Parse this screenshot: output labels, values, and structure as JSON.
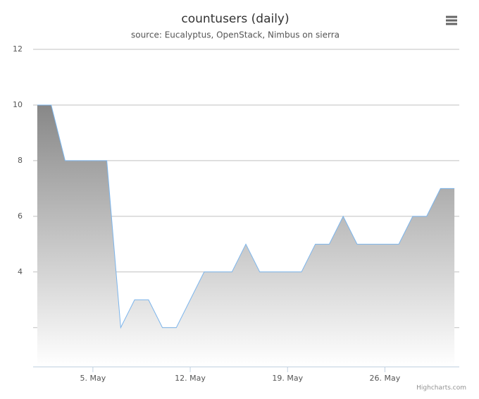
{
  "chart_data": {
    "type": "area",
    "title": "countusers (daily)",
    "subtitle": "source: Eucalyptus, OpenStack, Nimbus on sierra",
    "x": [
      1,
      2,
      3,
      4,
      5,
      6,
      7,
      8,
      9,
      10,
      11,
      12,
      13,
      14,
      15,
      16,
      17,
      18,
      19,
      20,
      21,
      22,
      23,
      24,
      25,
      26,
      27,
      28,
      29,
      30,
      31
    ],
    "series": [
      {
        "name": "countusers",
        "color": "#7cb5ec",
        "values": [
          10,
          10,
          8,
          8,
          8,
          8,
          2,
          3,
          3,
          2,
          2,
          3,
          4,
          4,
          4,
          5,
          4,
          4,
          4,
          4,
          5,
          5,
          6,
          5,
          5,
          5,
          5,
          6,
          6,
          7,
          7
        ]
      }
    ],
    "xlim": [
      0.7,
      31.35
    ],
    "xticks": [
      {
        "value": 5,
        "label": "5. May"
      },
      {
        "value": 12,
        "label": "12. May"
      },
      {
        "value": 19,
        "label": "19. May"
      },
      {
        "value": 26,
        "label": "26. May"
      }
    ],
    "ylim": [
      0.6,
      12
    ],
    "yticks": [
      4,
      6,
      8,
      10,
      12
    ],
    "ygrid": [
      2,
      4,
      6,
      8,
      10,
      12
    ],
    "grid": true,
    "credits": "Highcharts.com"
  }
}
